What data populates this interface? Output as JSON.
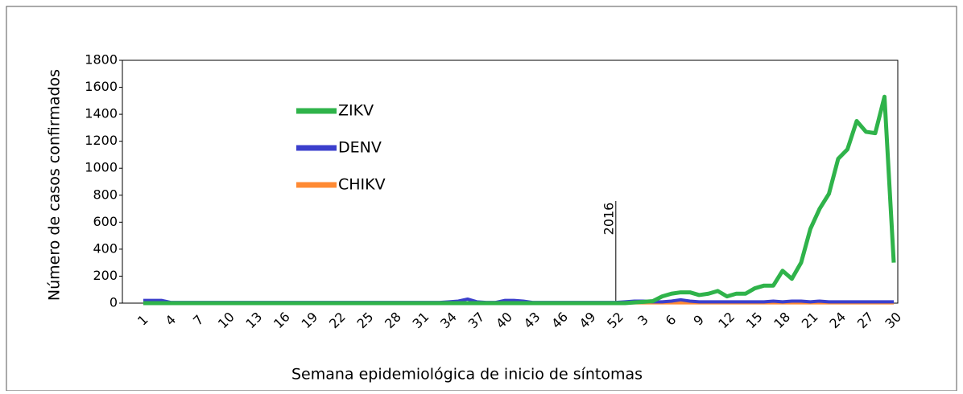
{
  "chart_data": {
    "type": "line",
    "x_label": "Semana epidemiológica de inicio de síntomas",
    "y_label": "Número de casos confirmados",
    "annotation": "2016",
    "categories": [
      1,
      null,
      null,
      4,
      null,
      null,
      7,
      null,
      null,
      10,
      null,
      null,
      13,
      null,
      null,
      16,
      null,
      null,
      19,
      null,
      null,
      22,
      null,
      null,
      25,
      null,
      null,
      28,
      null,
      null,
      31,
      null,
      null,
      34,
      null,
      null,
      37,
      null,
      null,
      40,
      null,
      null,
      43,
      null,
      null,
      46,
      null,
      null,
      49,
      null,
      null,
      52,
      null,
      null,
      3,
      null,
      null,
      6,
      null,
      null,
      9,
      null,
      null,
      12,
      null,
      null,
      15,
      null,
      null,
      18,
      null,
      null,
      21,
      null,
      null,
      24,
      null,
      null,
      27,
      null,
      null,
      30
    ],
    "series": [
      {
        "name": "ZIKV",
        "color": "#2fb34a",
        "values": [
          0,
          0,
          0,
          0,
          0,
          0,
          0,
          0,
          0,
          0,
          0,
          0,
          0,
          0,
          0,
          0,
          0,
          0,
          0,
          0,
          0,
          0,
          0,
          0,
          0,
          0,
          0,
          0,
          0,
          0,
          0,
          0,
          0,
          0,
          0,
          0,
          0,
          0,
          0,
          0,
          0,
          0,
          0,
          0,
          0,
          0,
          0,
          0,
          0,
          0,
          0,
          0,
          0,
          5,
          10,
          15,
          50,
          70,
          80,
          80,
          60,
          70,
          90,
          50,
          70,
          70,
          110,
          130,
          130,
          240,
          180,
          300,
          550,
          700,
          810,
          1070,
          1140,
          1350,
          1270,
          1260,
          1530,
          300
        ]
      },
      {
        "name": "DENV",
        "color": "#3b3fcc",
        "values": [
          20,
          20,
          20,
          5,
          5,
          5,
          5,
          5,
          5,
          5,
          5,
          5,
          5,
          5,
          5,
          5,
          5,
          5,
          5,
          5,
          5,
          5,
          5,
          5,
          5,
          5,
          5,
          5,
          5,
          5,
          5,
          5,
          5,
          10,
          15,
          30,
          10,
          5,
          5,
          20,
          20,
          15,
          5,
          5,
          5,
          5,
          5,
          5,
          5,
          5,
          5,
          5,
          10,
          15,
          15,
          10,
          10,
          15,
          25,
          15,
          10,
          10,
          10,
          10,
          10,
          10,
          10,
          10,
          15,
          10,
          15,
          15,
          10,
          15,
          10,
          10,
          10,
          10,
          10,
          10,
          10,
          10
        ]
      },
      {
        "name": "CHIKV",
        "color": "#ff8a33",
        "values": [
          2,
          2,
          2,
          2,
          2,
          2,
          2,
          2,
          2,
          2,
          2,
          2,
          2,
          2,
          2,
          2,
          2,
          2,
          2,
          2,
          2,
          2,
          2,
          2,
          2,
          2,
          2,
          2,
          2,
          2,
          2,
          2,
          2,
          2,
          2,
          2,
          2,
          2,
          2,
          2,
          2,
          2,
          2,
          2,
          2,
          2,
          2,
          2,
          2,
          2,
          2,
          2,
          2,
          2,
          2,
          2,
          2,
          2,
          2,
          2,
          2,
          2,
          2,
          2,
          2,
          2,
          2,
          2,
          2,
          2,
          2,
          2,
          2,
          2,
          2,
          2,
          2,
          2,
          2,
          2,
          2,
          2
        ]
      }
    ],
    "ylim": [
      0,
      1800
    ],
    "yticks": [
      0,
      200,
      400,
      600,
      800,
      1000,
      1200,
      1400,
      1600,
      1800
    ],
    "legend": "upper left",
    "grid": false
  }
}
